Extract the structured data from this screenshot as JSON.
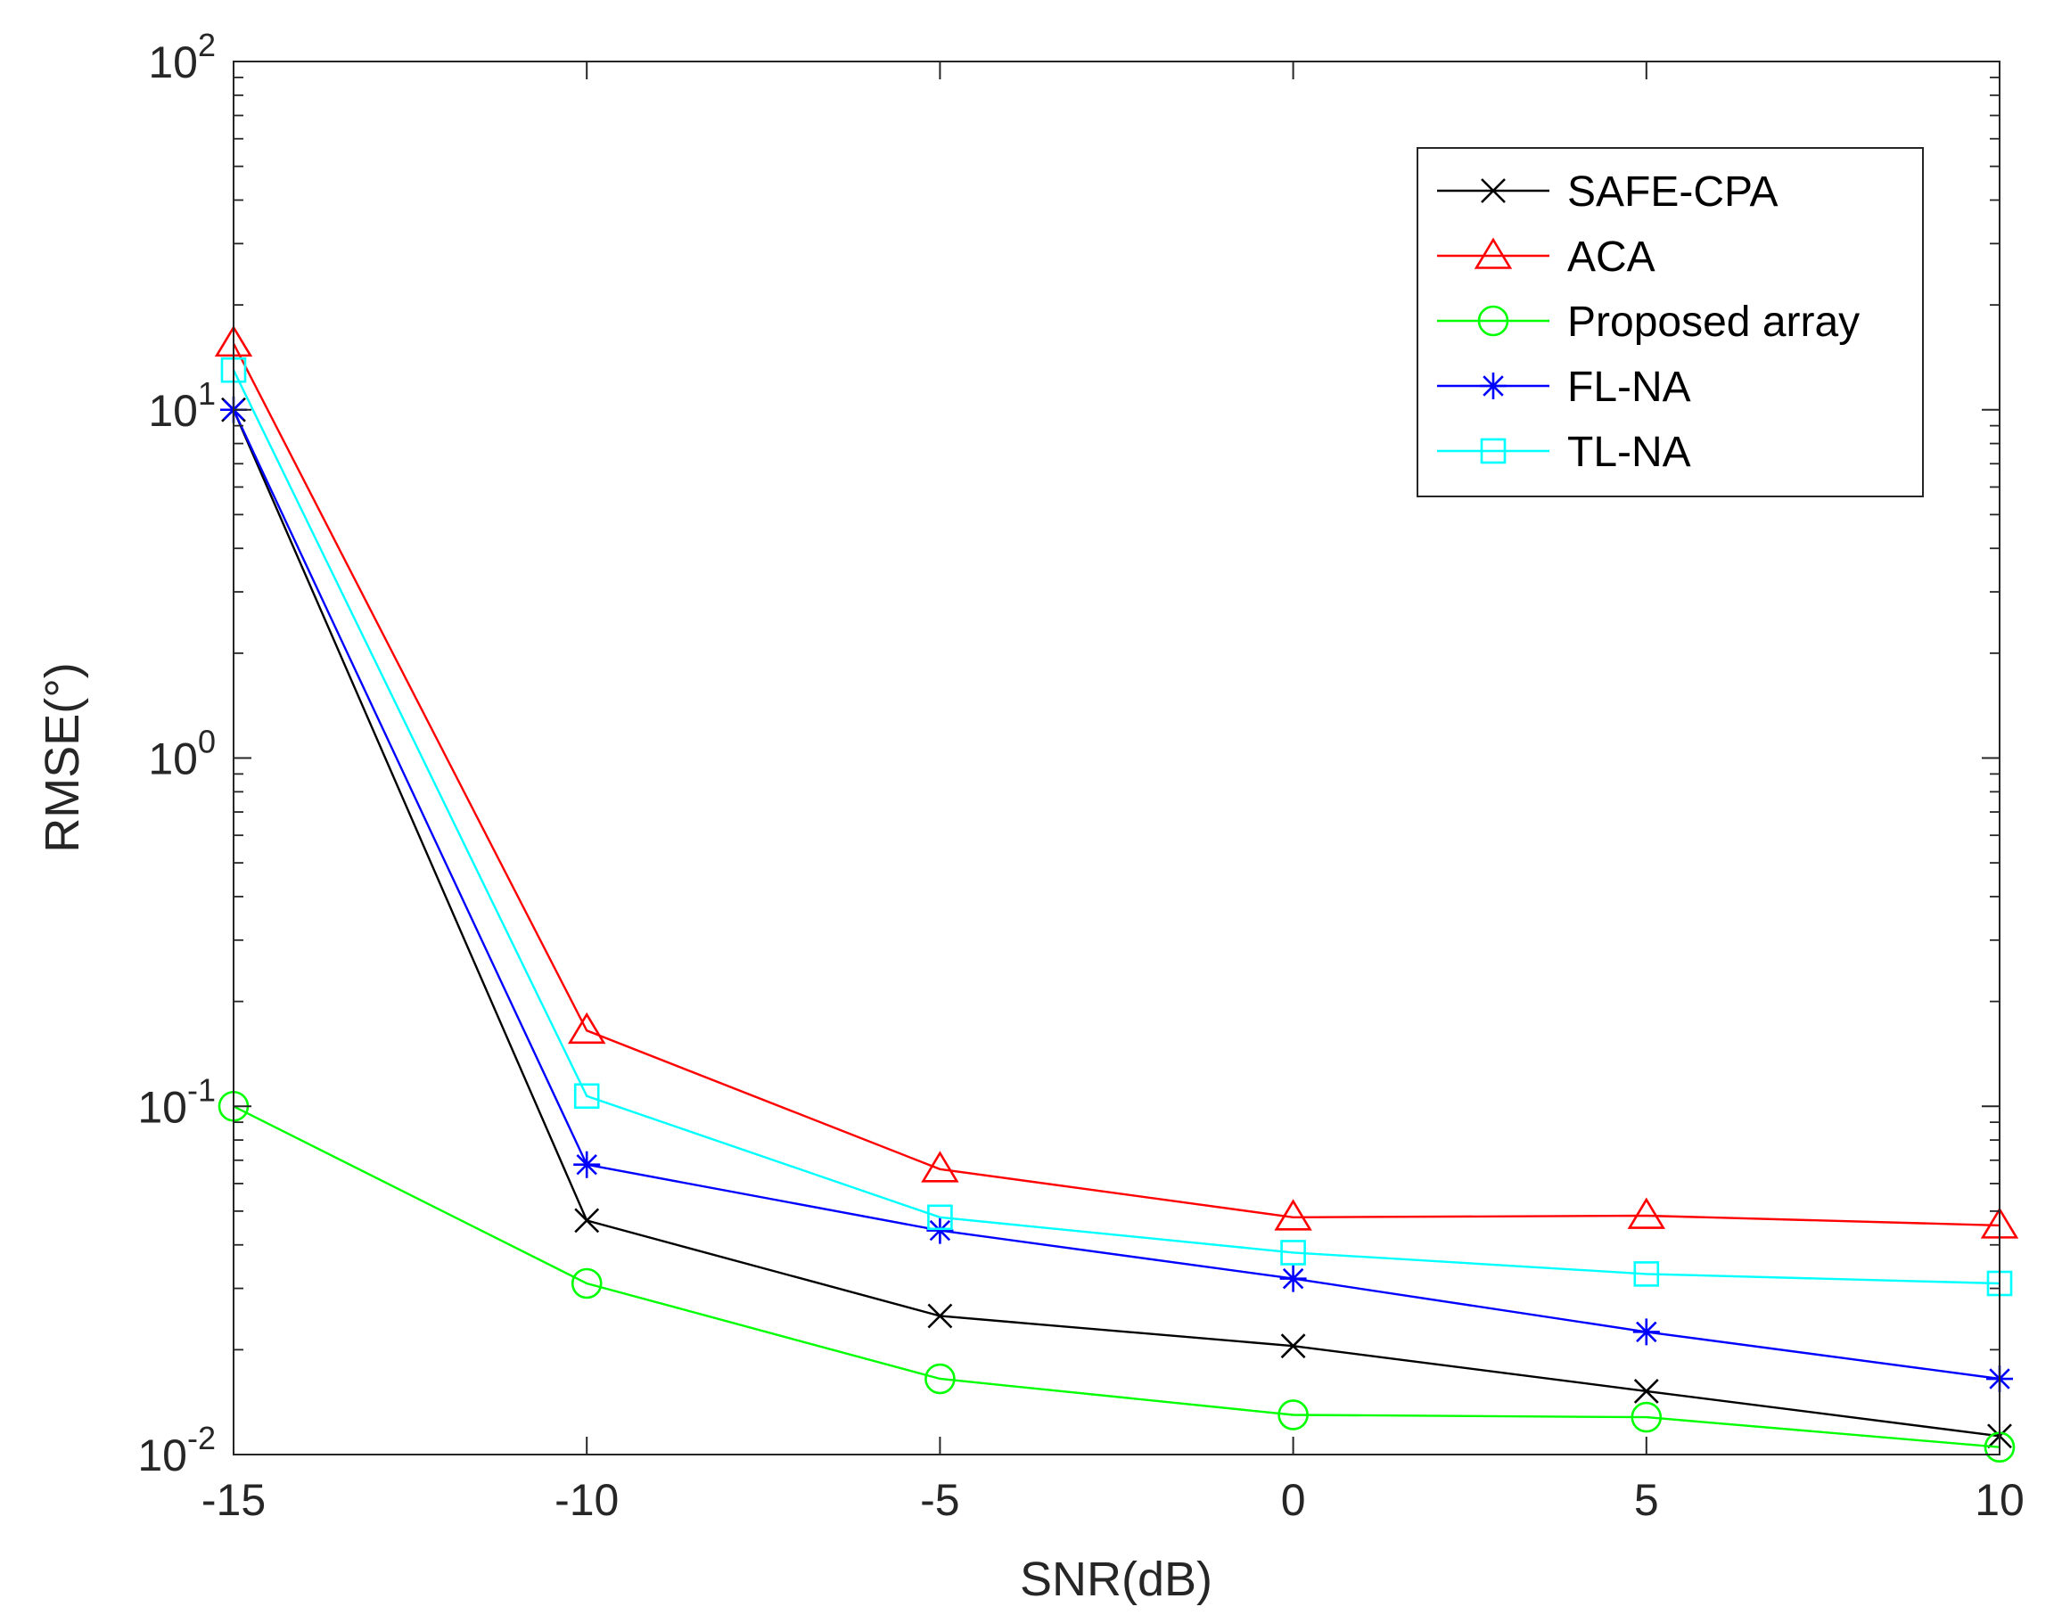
{
  "chart_data": {
    "type": "line",
    "xlabel": "SNR(dB)",
    "ylabel": "RMSE(°)",
    "x": [
      -15,
      -10,
      -5,
      0,
      5,
      10
    ],
    "xlim": [
      -15,
      10
    ],
    "xticks": [
      -15,
      -10,
      -5,
      0,
      5,
      10
    ],
    "xtick_labels": [
      "-15",
      "-10",
      "-5",
      "0",
      "5",
      "10"
    ],
    "yscale": "log",
    "ylim": [
      0.01,
      100
    ],
    "yticks": [
      0.01,
      0.1,
      1,
      10,
      100
    ],
    "ytick_labels": [
      {
        "base": "10",
        "exp": "-2"
      },
      {
        "base": "10",
        "exp": "-1"
      },
      {
        "base": "10",
        "exp": "0"
      },
      {
        "base": "10",
        "exp": "1"
      },
      {
        "base": "10",
        "exp": "2"
      }
    ],
    "grid": false,
    "legend_position": "top-right",
    "series": [
      {
        "name": "SAFE-CPA",
        "color": "#000000",
        "marker": "x",
        "values": [
          10,
          0.047,
          0.025,
          0.0205,
          0.0152,
          0.0113
        ]
      },
      {
        "name": "ACA",
        "color": "#ff0000",
        "marker": "triangle",
        "values": [
          15.5,
          0.165,
          0.066,
          0.048,
          0.0485,
          0.0455
        ]
      },
      {
        "name": "Proposed array",
        "color": "#00ff00",
        "marker": "circle",
        "values": [
          0.1,
          0.031,
          0.0165,
          0.013,
          0.0128,
          0.0105
        ]
      },
      {
        "name": "FL-NA",
        "color": "#0000ff",
        "marker": "star",
        "values": [
          10,
          0.068,
          0.044,
          0.032,
          0.0225,
          0.0165
        ]
      },
      {
        "name": "TL-NA",
        "color": "#00ffff",
        "marker": "square",
        "values": [
          13,
          0.107,
          0.048,
          0.038,
          0.033,
          0.031
        ]
      }
    ]
  }
}
